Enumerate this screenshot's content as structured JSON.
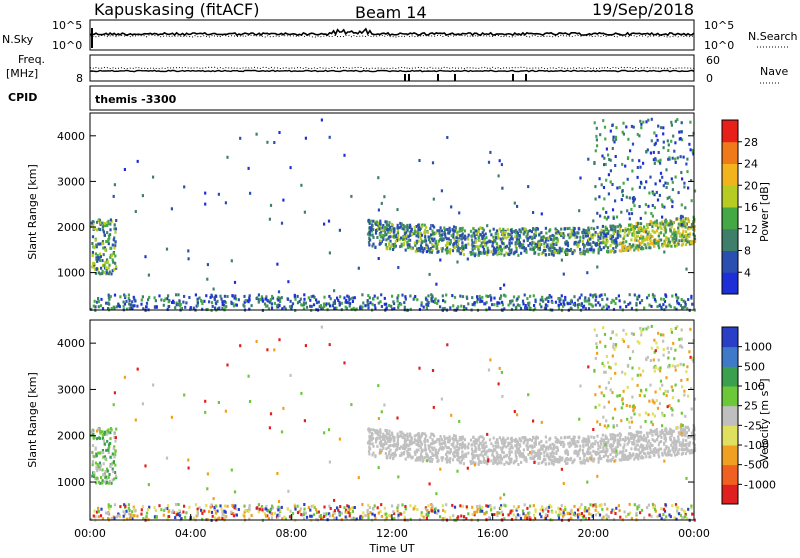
{
  "header": {
    "station": "Kapuskasing (fitACF)",
    "beam": "Beam 14",
    "date": "19/Sep/2018"
  },
  "panels": {
    "nsky_label": "N.Sky",
    "nsearch_label": "N.Search",
    "freq_label_1": "Freq.",
    "freq_label_2": "[MHz]",
    "nave_label": "Nave",
    "cpid_label": "CPID",
    "cpid_value": "themis -3300",
    "noise_ticks_left": [
      "10^5",
      "10^0"
    ],
    "noise_ticks_right": [
      "10^5",
      "10^0"
    ],
    "freq_ticks": [
      "8"
    ],
    "nave_ticks": [
      "60",
      "0"
    ]
  },
  "chart_data": [
    {
      "type": "heatmap",
      "panel": "power",
      "ylabel": "Slant Range [km]",
      "xlabel": "",
      "y_ticks": [
        "1000",
        "2000",
        "3000",
        "4000"
      ],
      "ylim": [
        180,
        4500
      ],
      "colorbar": {
        "label": "Power [dB]",
        "ticks": [
          "4",
          "8",
          "12",
          "16",
          "20",
          "24",
          "28"
        ],
        "colors": [
          "#1f2fd8",
          "#2a4fb0",
          "#3f7f6a",
          "#44a845",
          "#b6cc22",
          "#f2b41c",
          "#f07a1a",
          "#e8201a"
        ]
      }
    },
    {
      "type": "heatmap",
      "panel": "velocity",
      "ylabel": "Slant Range [km]",
      "xlabel": "Time UT",
      "x_ticks": [
        "00:00",
        "04:00",
        "08:00",
        "12:00",
        "16:00",
        "20:00",
        "00:00"
      ],
      "y_ticks": [
        "1000",
        "2000",
        "3000",
        "4000"
      ],
      "ylim": [
        180,
        4500
      ],
      "colorbar": {
        "label": "Velocity [m s-1]",
        "ticks": [
          "1000",
          "500",
          "100",
          "25",
          "-25",
          "-100",
          "-500",
          "-1000"
        ],
        "colors": [
          "#2a3fc8",
          "#3e7ac8",
          "#3aa050",
          "#6cc838",
          "#bfbfbf",
          "#e0e060",
          "#f0a020",
          "#f06020",
          "#e02020"
        ]
      }
    }
  ]
}
